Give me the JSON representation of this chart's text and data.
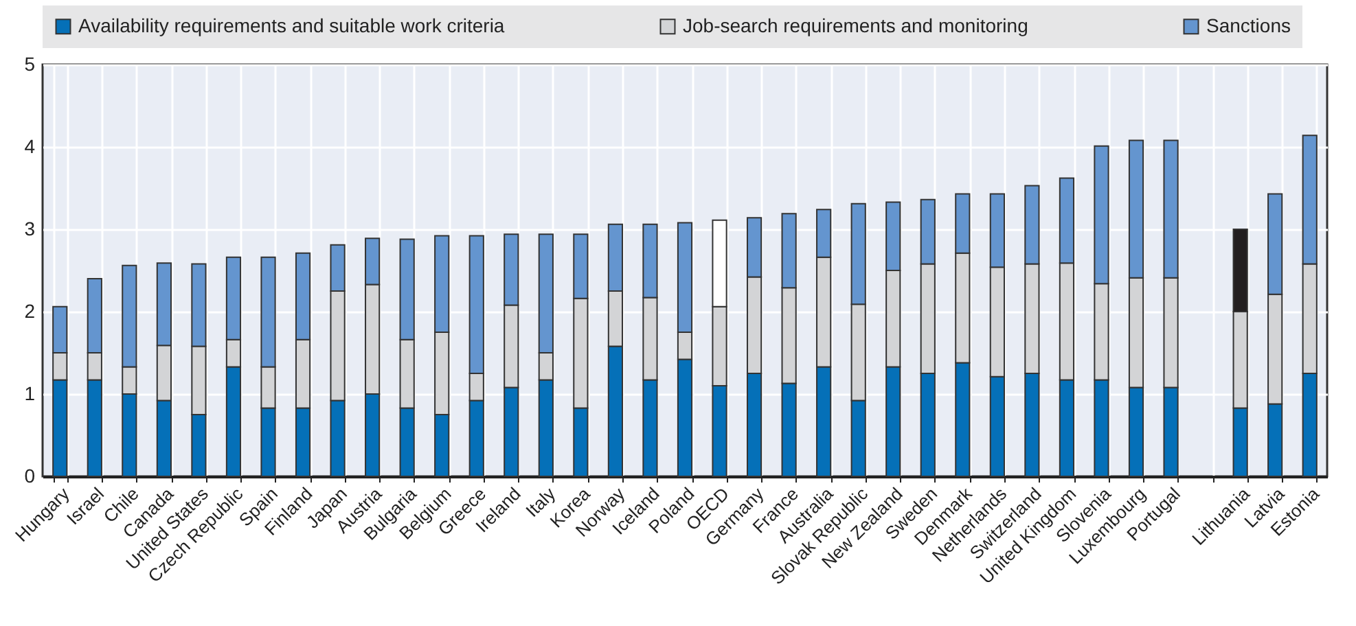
{
  "chart_data": {
    "type": "bar",
    "stacked": true,
    "categories": [
      "Hungary",
      "Israel",
      "Chile",
      "Canada",
      "United States",
      "Czech Republic",
      "Spain",
      "Finland",
      "Japan",
      "Austria",
      "Bulgaria",
      "Belgium",
      "Greece",
      "Ireland",
      "Italy",
      "Korea",
      "Norway",
      "Iceland",
      "Poland",
      "OECD",
      "Germany",
      "France",
      "Australia",
      "Slovak Republic",
      "New Zealand",
      "Sweden",
      "Denmark",
      "Netherlands",
      "Switzerland",
      "United Kingdom",
      "Slovenia",
      "Luxembourg",
      "Portugal",
      null,
      "Lithuania",
      "Latvia",
      "Estonia"
    ],
    "series": [
      {
        "name": "Availability requirements and suitable work criteria",
        "color": "#0570b8",
        "values": [
          1.17,
          1.17,
          1.0,
          0.92,
          0.75,
          1.33,
          0.83,
          0.83,
          0.92,
          1.0,
          0.83,
          0.75,
          0.92,
          1.08,
          1.17,
          0.83,
          1.58,
          1.17,
          1.42,
          1.1,
          1.25,
          1.13,
          1.33,
          0.92,
          1.33,
          1.25,
          1.38,
          1.21,
          1.25,
          1.17,
          1.17,
          1.08,
          1.08,
          null,
          0.83,
          0.88,
          1.25
        ]
      },
      {
        "name": "Job-search requirements and monitoring",
        "color": "#d3d4d6",
        "values": [
          0.33,
          0.33,
          0.33,
          0.67,
          0.83,
          0.33,
          0.5,
          0.83,
          1.33,
          1.33,
          0.83,
          1.0,
          0.33,
          1.0,
          0.33,
          1.33,
          0.67,
          1.0,
          0.33,
          0.96,
          1.17,
          1.16,
          1.33,
          1.17,
          1.17,
          1.33,
          1.33,
          1.33,
          1.33,
          1.42,
          1.17,
          1.33,
          1.33,
          null,
          1.17,
          1.33,
          1.33
        ]
      },
      {
        "name": "Sanctions",
        "color": "#6495cf",
        "colors": [
          "#6495cf",
          "#6495cf",
          "#6495cf",
          "#6495cf",
          "#6495cf",
          "#6495cf",
          "#6495cf",
          "#6495cf",
          "#6495cf",
          "#6495cf",
          "#6495cf",
          "#6495cf",
          "#6495cf",
          "#6495cf",
          "#6495cf",
          "#6495cf",
          "#6495cf",
          "#6495cf",
          "#6495cf",
          "#ffffff",
          "#6495cf",
          "#6495cf",
          "#6495cf",
          "#6495cf",
          "#6495cf",
          "#6495cf",
          "#6495cf",
          "#6495cf",
          "#6495cf",
          "#6495cf",
          "#6495cf",
          "#6495cf",
          "#6495cf",
          null,
          "#231f20",
          "#6495cf",
          "#6495cf"
        ],
        "values": [
          0.56,
          0.9,
          1.23,
          1.0,
          1.0,
          1.0,
          1.33,
          1.05,
          0.56,
          0.56,
          1.22,
          1.17,
          1.67,
          0.86,
          1.44,
          0.78,
          0.81,
          0.89,
          1.33,
          1.05,
          0.72,
          0.9,
          0.58,
          1.22,
          0.83,
          0.78,
          0.72,
          0.89,
          0.95,
          1.03,
          1.67,
          1.67,
          1.67,
          null,
          1.0,
          1.22,
          1.56
        ]
      }
    ],
    "ylim": [
      0,
      5
    ],
    "yticks": [
      0,
      1,
      2,
      3,
      4,
      5
    ],
    "grid": true,
    "legend": "top"
  }
}
